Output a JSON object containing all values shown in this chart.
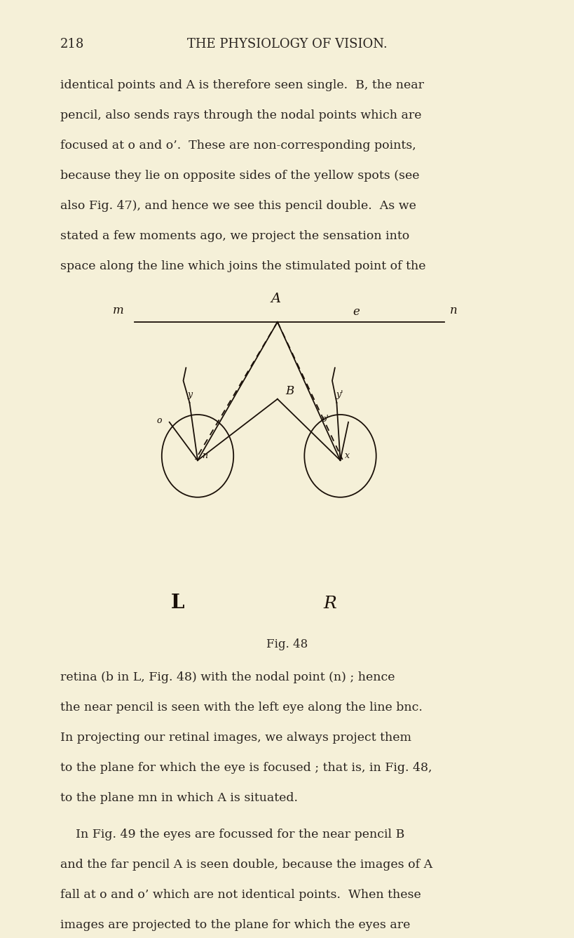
{
  "bg_color": "#f5f0d8",
  "text_color": "#2a2420",
  "page_number": "218",
  "header": "THE PHYSIOLOGY OF VISION.",
  "top_paragraph": "identical points and A is therefore seen single.  B, the near\npencil, also sends rays through the nodal points which are\nfocused at o and o’.  These are non-corresponding points,\nbecause they lie on opposite sides of the yellow spots (see\nalso Fig. 47), and hence we see this pencil double.  As we\nstated a few moments ago, we project the sensation into\nspace along the line which joins the stimulated point of the",
  "bottom_paragraph1": "retina (b in L, Fig. 48) with the nodal point (n) ; hence\nthe near pencil is seen with the left eye along the line bnc.\nIn projecting our retinal images, we always project them\nto the plane for which the eye is focused ; that is, in Fig. 48,\nto the plane mn in which A is situated.",
  "bottom_paragraph2": "    In Fig. 49 the eyes are focussed for the near pencil B\nand the far pencil A is seen double, because the images of A\nfall at o and o’ which are not identical points.  When these\nimages are projected to the plane for which the eyes are",
  "fig_caption": "Fig. 48",
  "ink": "#1a1008"
}
